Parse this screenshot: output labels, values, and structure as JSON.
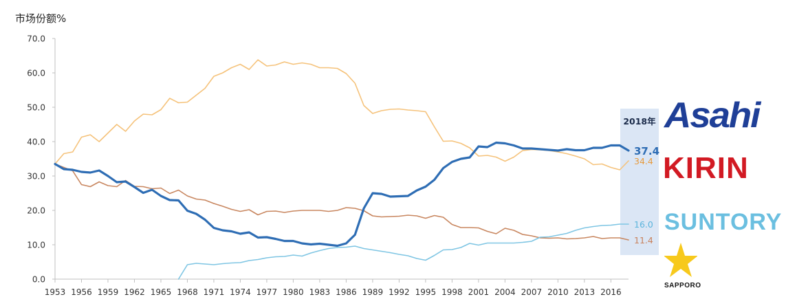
{
  "y_title": "市场份额%",
  "logos": {
    "asahi": "Asahi",
    "kirin": "KIRIN",
    "suntory": "SUNTORY",
    "sapporo": "SAPPORO"
  },
  "chart_data": {
    "type": "line",
    "ylabel": "",
    "ylim": [
      0,
      70
    ],
    "yticks": [
      "0.0",
      "10.0",
      "20.0",
      "30.0",
      "40.0",
      "50.0",
      "60.0",
      "70.0"
    ],
    "xlim": [
      1953,
      2018
    ],
    "xticks": [
      1953,
      1956,
      1959,
      1962,
      1965,
      1968,
      1971,
      1974,
      1977,
      1980,
      1983,
      1986,
      1989,
      1992,
      1995,
      1998,
      2001,
      2004,
      2007,
      2010,
      2013,
      2016
    ],
    "highlight": {
      "label": "2018年",
      "x": 2018,
      "color": "#dbe6f5"
    },
    "colors": {
      "axis": "#bfbfbf"
    },
    "series": [
      {
        "key": "kirin",
        "color": "#f5c27a",
        "width": 1.6,
        "end_label": "34.4",
        "label_color": "#e79a3c",
        "points": [
          [
            1953,
            33.5
          ],
          [
            1954,
            36.5
          ],
          [
            1955,
            37
          ],
          [
            1956,
            41.3
          ],
          [
            1957,
            42
          ],
          [
            1958,
            40
          ],
          [
            1959,
            42.5
          ],
          [
            1960,
            45
          ],
          [
            1961,
            43
          ],
          [
            1962,
            46
          ],
          [
            1963,
            48
          ],
          [
            1964,
            47.8
          ],
          [
            1965,
            49.3
          ],
          [
            1966,
            52.6
          ],
          [
            1967,
            51.3
          ],
          [
            1968,
            51.5
          ],
          [
            1969,
            53.5
          ],
          [
            1970,
            55.5
          ],
          [
            1971,
            59
          ],
          [
            1972,
            60
          ],
          [
            1973,
            61.5
          ],
          [
            1974,
            62.5
          ],
          [
            1975,
            61
          ],
          [
            1976,
            63.8
          ],
          [
            1977,
            62
          ],
          [
            1978,
            62.3
          ],
          [
            1979,
            63.2
          ],
          [
            1980,
            62.5
          ],
          [
            1981,
            62.9
          ],
          [
            1982,
            62.5
          ],
          [
            1983,
            61.5
          ],
          [
            1984,
            61.5
          ],
          [
            1985,
            61.3
          ],
          [
            1986,
            59.8
          ],
          [
            1987,
            57
          ],
          [
            1988,
            50.5
          ],
          [
            1989,
            48.2
          ],
          [
            1990,
            49
          ],
          [
            1991,
            49.4
          ],
          [
            1992,
            49.5
          ],
          [
            1993,
            49.2
          ],
          [
            1994,
            49
          ],
          [
            1995,
            48.7
          ],
          [
            1996,
            44.3
          ],
          [
            1997,
            40.1
          ],
          [
            1998,
            40.2
          ],
          [
            1999,
            39.5
          ],
          [
            2000,
            38.2
          ],
          [
            2001,
            35.8
          ],
          [
            2002,
            36
          ],
          [
            2003,
            35.5
          ],
          [
            2004,
            34.3
          ],
          [
            2005,
            35.5
          ],
          [
            2006,
            37.4
          ],
          [
            2007,
            37.7
          ],
          [
            2008,
            37.6
          ],
          [
            2009,
            37.4
          ],
          [
            2010,
            37
          ],
          [
            2011,
            36.5
          ],
          [
            2012,
            35.8
          ],
          [
            2013,
            35
          ],
          [
            2014,
            33.3
          ],
          [
            2015,
            33.5
          ],
          [
            2016,
            32.5
          ],
          [
            2017,
            31.8
          ],
          [
            2018,
            34.4
          ]
        ]
      },
      {
        "key": "sapporo",
        "color": "#c8865f",
        "width": 1.6,
        "end_label": "11.4",
        "label_color": "#c8805a",
        "points": [
          [
            1953,
            33.5
          ],
          [
            1954,
            32.5
          ],
          [
            1955,
            31.5
          ],
          [
            1956,
            27.5
          ],
          [
            1957,
            26.9
          ],
          [
            1958,
            28.3
          ],
          [
            1959,
            27.2
          ],
          [
            1960,
            26.9
          ],
          [
            1961,
            28.7
          ],
          [
            1962,
            27
          ],
          [
            1963,
            26.9
          ],
          [
            1964,
            26.3
          ],
          [
            1965,
            26.5
          ],
          [
            1966,
            24.9
          ],
          [
            1967,
            25.9
          ],
          [
            1968,
            24.2
          ],
          [
            1969,
            23.3
          ],
          [
            1970,
            23
          ],
          [
            1971,
            22
          ],
          [
            1972,
            21.2
          ],
          [
            1973,
            20.3
          ],
          [
            1974,
            19.7
          ],
          [
            1975,
            20.2
          ],
          [
            1976,
            18.7
          ],
          [
            1977,
            19.7
          ],
          [
            1978,
            19.8
          ],
          [
            1979,
            19.4
          ],
          [
            1980,
            19.8
          ],
          [
            1981,
            20
          ],
          [
            1982,
            20
          ],
          [
            1983,
            20
          ],
          [
            1984,
            19.7
          ],
          [
            1985,
            20
          ],
          [
            1986,
            20.8
          ],
          [
            1987,
            20.6
          ],
          [
            1988,
            19.9
          ],
          [
            1989,
            18.4
          ],
          [
            1990,
            18.1
          ],
          [
            1991,
            18.2
          ],
          [
            1992,
            18.3
          ],
          [
            1993,
            18.6
          ],
          [
            1994,
            18.4
          ],
          [
            1995,
            17.7
          ],
          [
            1996,
            18.5
          ],
          [
            1997,
            18
          ],
          [
            1998,
            15.9
          ],
          [
            1999,
            15
          ],
          [
            2000,
            15
          ],
          [
            2001,
            14.9
          ],
          [
            2002,
            13.9
          ],
          [
            2003,
            13.2
          ],
          [
            2004,
            14.8
          ],
          [
            2005,
            14.2
          ],
          [
            2006,
            13
          ],
          [
            2007,
            12.6
          ],
          [
            2008,
            12
          ],
          [
            2009,
            11.9
          ],
          [
            2010,
            12
          ],
          [
            2011,
            11.7
          ],
          [
            2012,
            11.8
          ],
          [
            2013,
            12
          ],
          [
            2014,
            12.4
          ],
          [
            2015,
            11.8
          ],
          [
            2016,
            12
          ],
          [
            2017,
            12
          ],
          [
            2018,
            11.4
          ]
        ]
      },
      {
        "key": "suntory",
        "color": "#7ec5e3",
        "width": 1.6,
        "end_label": "16.0",
        "label_color": "#5ab4dc",
        "points": [
          [
            1967,
            0
          ],
          [
            1968,
            4.2
          ],
          [
            1969,
            4.6
          ],
          [
            1970,
            4.4
          ],
          [
            1971,
            4.2
          ],
          [
            1972,
            4.5
          ],
          [
            1973,
            4.7
          ],
          [
            1974,
            4.8
          ],
          [
            1975,
            5.4
          ],
          [
            1976,
            5.7
          ],
          [
            1977,
            6.2
          ],
          [
            1978,
            6.5
          ],
          [
            1979,
            6.6
          ],
          [
            1980,
            7
          ],
          [
            1981,
            6.7
          ],
          [
            1982,
            7.6
          ],
          [
            1983,
            8.3
          ],
          [
            1984,
            8.9
          ],
          [
            1985,
            9.2
          ],
          [
            1986,
            9.3
          ],
          [
            1987,
            9.6
          ],
          [
            1988,
            8.9
          ],
          [
            1989,
            8.5
          ],
          [
            1990,
            8.1
          ],
          [
            1991,
            7.7
          ],
          [
            1992,
            7.2
          ],
          [
            1993,
            6.8
          ],
          [
            1994,
            6
          ],
          [
            1995,
            5.5
          ],
          [
            1996,
            6.9
          ],
          [
            1997,
            8.5
          ],
          [
            1998,
            8.6
          ],
          [
            1999,
            9.2
          ],
          [
            2000,
            10.4
          ],
          [
            2001,
            9.9
          ],
          [
            2002,
            10.5
          ],
          [
            2003,
            10.5
          ],
          [
            2004,
            10.5
          ],
          [
            2005,
            10.5
          ],
          [
            2006,
            10.7
          ],
          [
            2007,
            11
          ],
          [
            2008,
            12.2
          ],
          [
            2009,
            12.3
          ],
          [
            2010,
            12.8
          ],
          [
            2011,
            13.3
          ],
          [
            2012,
            14.2
          ],
          [
            2013,
            14.9
          ],
          [
            2014,
            15.3
          ],
          [
            2015,
            15.6
          ],
          [
            2016,
            15.7
          ],
          [
            2017,
            16
          ],
          [
            2018,
            16
          ]
        ]
      },
      {
        "key": "asahi",
        "color": "#2e6db4",
        "width": 3.2,
        "end_label": "37.4",
        "label_color": "#2e6db4",
        "points": [
          [
            1953,
            33.5
          ],
          [
            1954,
            32
          ],
          [
            1955,
            31.8
          ],
          [
            1956,
            31.2
          ],
          [
            1957,
            31
          ],
          [
            1958,
            31.6
          ],
          [
            1959,
            30
          ],
          [
            1960,
            28.2
          ],
          [
            1961,
            28.4
          ],
          [
            1962,
            26.8
          ],
          [
            1963,
            25.1
          ],
          [
            1964,
            26
          ],
          [
            1965,
            24.2
          ],
          [
            1966,
            23
          ],
          [
            1967,
            22.9
          ],
          [
            1968,
            19.9
          ],
          [
            1969,
            19
          ],
          [
            1970,
            17.3
          ],
          [
            1971,
            14.9
          ],
          [
            1972,
            14.2
          ],
          [
            1973,
            13.9
          ],
          [
            1974,
            13.2
          ],
          [
            1975,
            13.6
          ],
          [
            1976,
            12.1
          ],
          [
            1977,
            12.2
          ],
          [
            1978,
            11.7
          ],
          [
            1979,
            11.1
          ],
          [
            1980,
            11.1
          ],
          [
            1981,
            10.4
          ],
          [
            1982,
            10.1
          ],
          [
            1983,
            10.3
          ],
          [
            1984,
            10
          ],
          [
            1985,
            9.7
          ],
          [
            1986,
            10.4
          ],
          [
            1987,
            12.9
          ],
          [
            1988,
            20.6
          ],
          [
            1989,
            25
          ],
          [
            1990,
            24.8
          ],
          [
            1991,
            24
          ],
          [
            1992,
            24.1
          ],
          [
            1993,
            24.2
          ],
          [
            1994,
            25.8
          ],
          [
            1995,
            26.9
          ],
          [
            1996,
            28.9
          ],
          [
            1997,
            32.3
          ],
          [
            1998,
            34.1
          ],
          [
            1999,
            35
          ],
          [
            2000,
            35.4
          ],
          [
            2001,
            38.6
          ],
          [
            2002,
            38.4
          ],
          [
            2003,
            39.7
          ],
          [
            2004,
            39.5
          ],
          [
            2005,
            38.9
          ],
          [
            2006,
            38
          ],
          [
            2007,
            38
          ],
          [
            2008,
            37.8
          ],
          [
            2009,
            37.6
          ],
          [
            2010,
            37.4
          ],
          [
            2011,
            37.8
          ],
          [
            2012,
            37.5
          ],
          [
            2013,
            37.5
          ],
          [
            2014,
            38.2
          ],
          [
            2015,
            38.2
          ],
          [
            2016,
            38.9
          ],
          [
            2017,
            38.9
          ],
          [
            2018,
            37.4
          ]
        ]
      }
    ]
  }
}
